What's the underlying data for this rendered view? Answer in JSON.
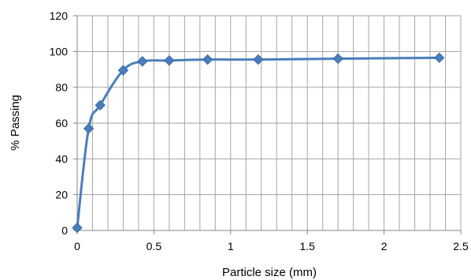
{
  "chart_data": {
    "type": "scatter",
    "title": "",
    "xlabel": "Particle size (mm)",
    "ylabel": "% Passing",
    "xlim": [
      0,
      2.5
    ],
    "ylim": [
      0,
      120
    ],
    "x_ticks": [
      0,
      0.5,
      1,
      1.5,
      2,
      2.5
    ],
    "x_tick_labels": [
      "0",
      "0.5",
      "1",
      "1.5",
      "2",
      "2.5"
    ],
    "y_ticks": [
      0,
      20,
      40,
      60,
      80,
      100,
      120
    ],
    "y_tick_labels": [
      "0",
      "20",
      "40",
      "60",
      "80",
      "100",
      "120"
    ],
    "x_minor_step": 0.1,
    "grid": true,
    "legend": "none",
    "line_style": "smoothed",
    "marker": "diamond",
    "series": [
      {
        "color": "#4a7ebb",
        "x": [
          0,
          0.075,
          0.15,
          0.3,
          0.425,
          0.6,
          0.85,
          1.18,
          1.7,
          2.36
        ],
        "y": [
          1.5,
          57,
          70,
          89.5,
          94.5,
          95,
          95.5,
          95.5,
          96,
          96.5
        ]
      }
    ]
  }
}
